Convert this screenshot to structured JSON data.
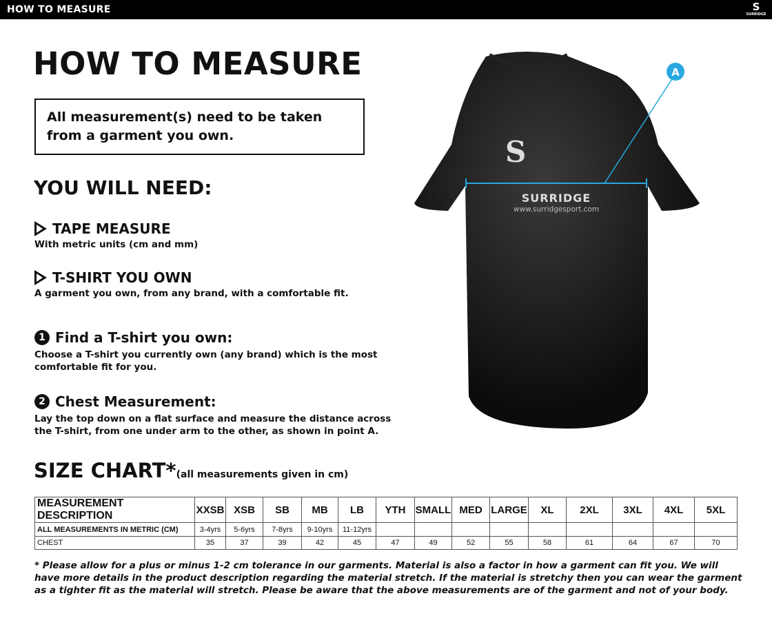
{
  "header": {
    "title": "HOW TO MEASURE",
    "logo_text": "SURRIDGE"
  },
  "main": {
    "title": "HOW TO MEASURE",
    "note": "All measurement(s) need to be taken from a garment you own.",
    "need_heading": "YOU WILL NEED:",
    "needs": [
      {
        "title": "TAPE MEASURE",
        "desc": "With metric units (cm and mm)"
      },
      {
        "title": "T-SHIRT YOU OWN",
        "desc": "A garment you own, from any brand, with a comfortable fit."
      }
    ],
    "steps": [
      {
        "num": "1",
        "title": "Find a T-shirt you own:",
        "desc": "Choose a T-shirt you currently own (any brand) which is the most comfortable fit for you."
      },
      {
        "num": "2",
        "title": "Chest Measurement:",
        "desc": "Lay the top down on a flat surface and measure the distance across the T-shirt, from one under arm to the other, as shown in point A."
      }
    ],
    "size_chart_title": "SIZE CHART*",
    "size_chart_sub": "(all measurements given in cm)"
  },
  "shirt": {
    "brand": "SURRIDGE",
    "url": "www.surridgesport.com",
    "point_label": "A",
    "accent": "#29a8e0"
  },
  "table": {
    "headers": [
      "MEASUREMENT DESCRIPTION",
      "XXSB",
      "XSB",
      "SB",
      "MB",
      "LB",
      "YTH",
      "SMALL",
      "MED",
      "LARGE",
      "XL",
      "2XL",
      "3XL",
      "4XL",
      "5XL"
    ],
    "rows": [
      [
        "ALL MEASUREMENTS IN METRIC (CM)",
        "3-4yrs",
        "5-6yrs",
        "7-8yrs",
        "9-10yrs",
        "11-12yrs",
        "",
        "",
        "",
        "",
        "",
        "",
        "",
        "",
        ""
      ],
      [
        "CHEST",
        "35",
        "37",
        "39",
        "42",
        "45",
        "47",
        "49",
        "52",
        "55",
        "58",
        "61",
        "64",
        "67",
        "70"
      ]
    ]
  },
  "footnote": "* Please allow for a plus or minus 1-2 cm tolerance in our garments. Material is also a factor in how a garment can fit you. We will have more details in the product description regarding the material stretch.  If the material is stretchy then you can wear the garment as a tighter fit as the material will stretch.  Please be aware that the above measurements are of the garment and not of your body."
}
